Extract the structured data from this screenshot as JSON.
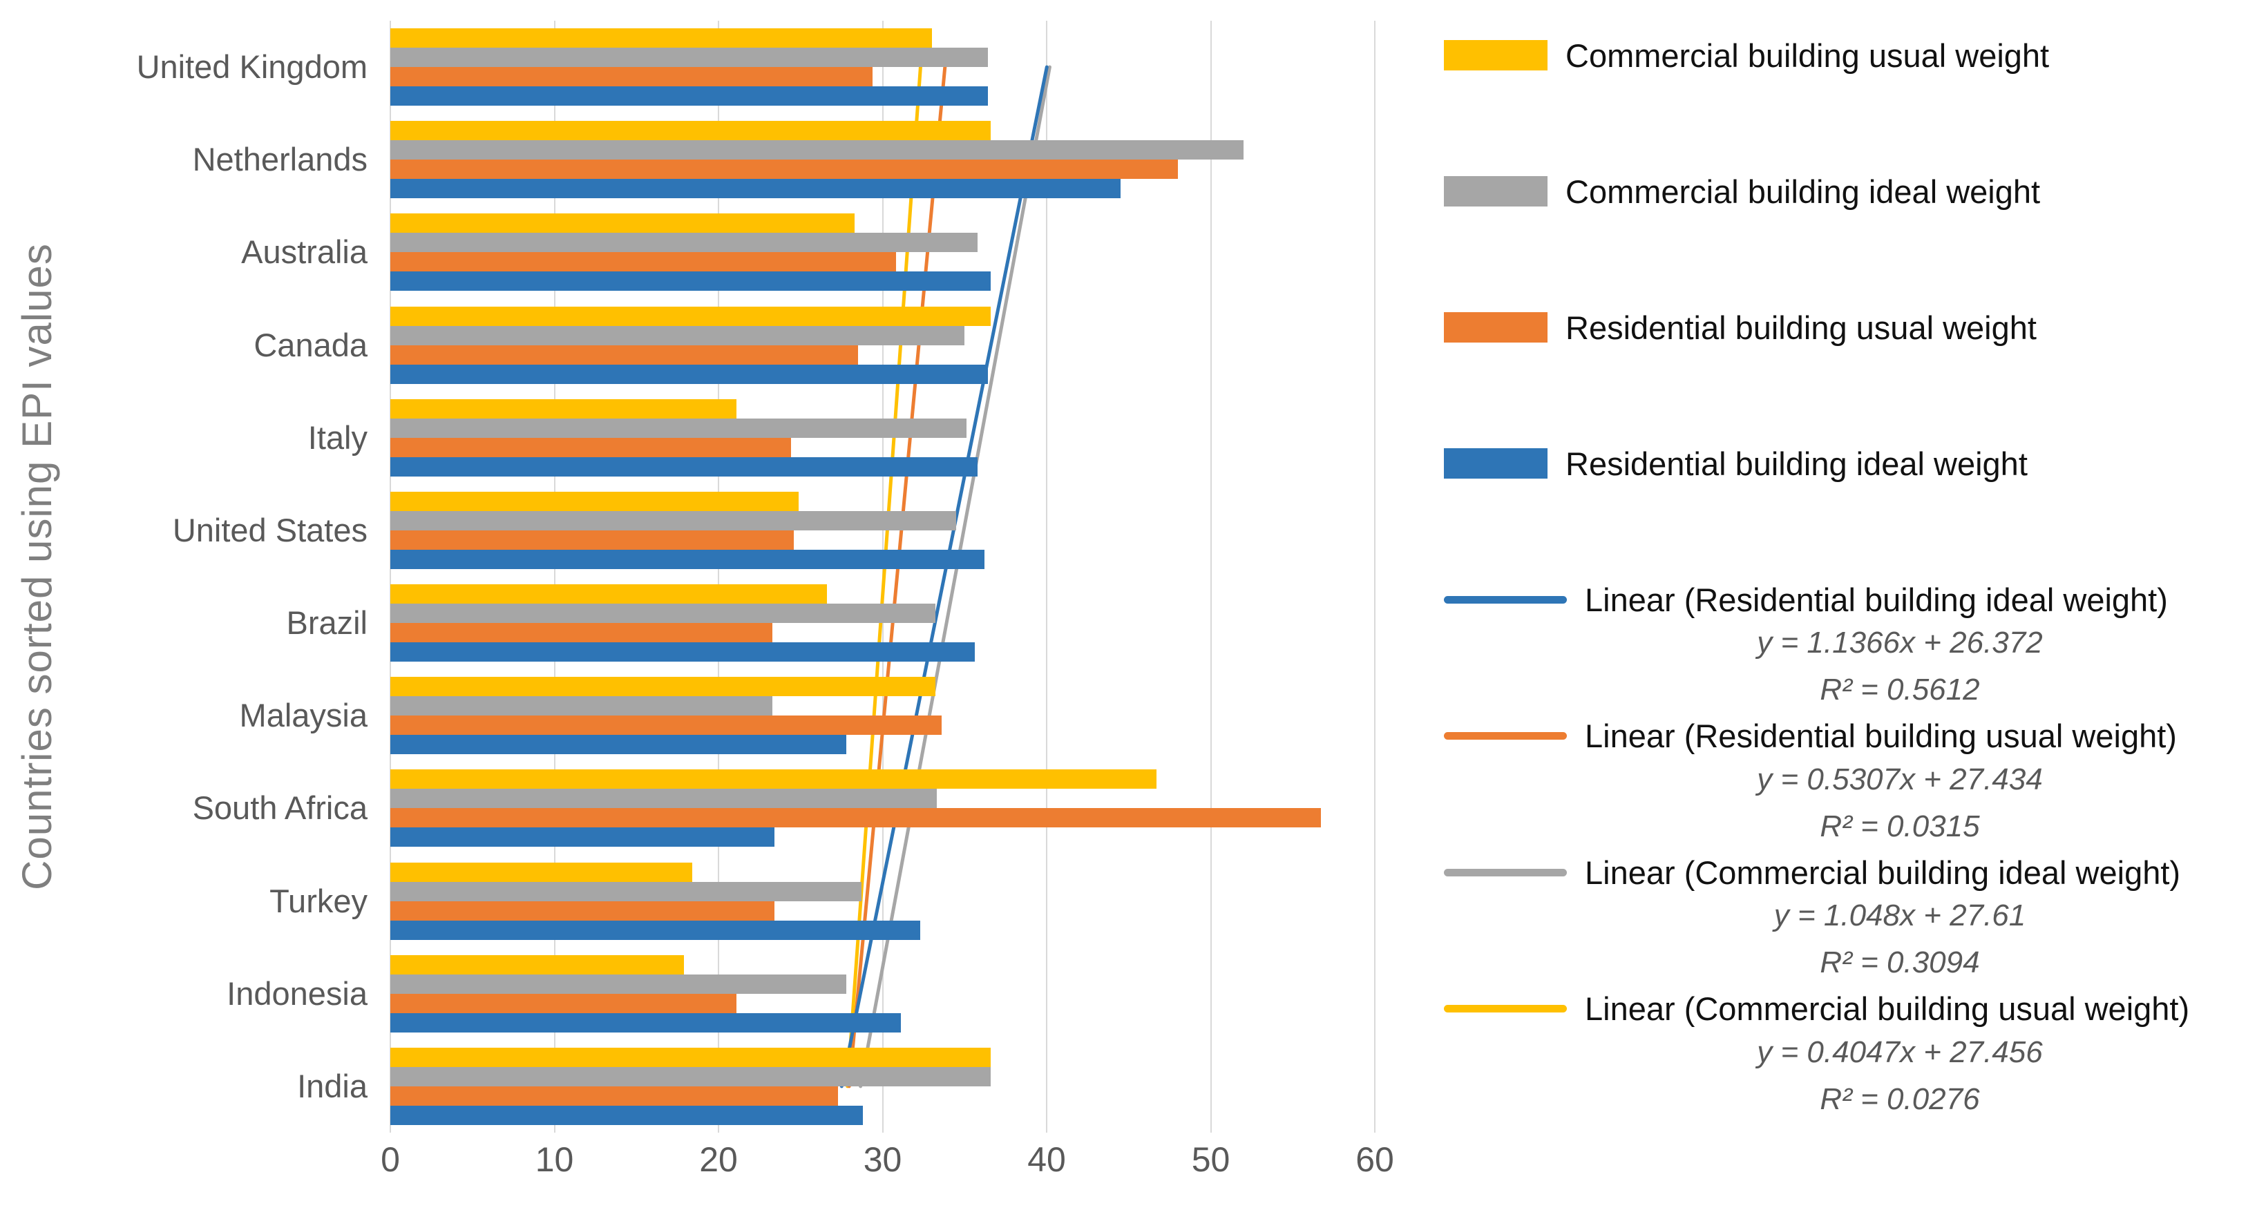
{
  "figure": {
    "y_axis_title": "Countries sorted using EPI values",
    "x_tick_labels": [
      "0",
      "10",
      "20",
      "30",
      "40",
      "50",
      "60"
    ],
    "x_tick_values": [
      0,
      10,
      20,
      30,
      40,
      50,
      60
    ],
    "background_color": "#ffffff",
    "gridline_color": "#d9d9d9",
    "tick_text_color": "#595959",
    "axis_title_color": "#7f7f7f"
  },
  "chart_data": {
    "type": "bar",
    "orientation": "horizontal",
    "title": "",
    "xlabel": "",
    "ylabel": "Countries sorted using EPI values",
    "xlim": [
      0,
      60
    ],
    "grid": true,
    "legend_position": "right",
    "categories": [
      "United Kingdom",
      "Netherlands",
      "Australia",
      "Canada",
      "Italy",
      "United States",
      "Brazil",
      "Malaysia",
      "South Africa",
      "Turkey",
      "Indonesia",
      "India"
    ],
    "series": [
      {
        "name": "Commercial building usual weight",
        "color": "#FFC000",
        "values": [
          33.0,
          36.6,
          28.3,
          36.6,
          21.1,
          24.9,
          26.6,
          33.2,
          46.7,
          18.4,
          17.9,
          36.6
        ]
      },
      {
        "name": "Commercial building ideal weight",
        "color": "#A6A6A6",
        "values": [
          36.4,
          52.0,
          35.8,
          35.0,
          35.1,
          34.5,
          33.2,
          23.3,
          33.3,
          28.7,
          27.8,
          36.6
        ]
      },
      {
        "name": "Residential building usual weight",
        "color": "#ED7D31",
        "values": [
          29.4,
          48.0,
          30.8,
          28.5,
          24.4,
          24.6,
          23.3,
          33.6,
          56.7,
          23.4,
          21.1,
          27.3
        ]
      },
      {
        "name": "Residential building ideal weight",
        "color": "#2E75B6",
        "values": [
          36.4,
          44.5,
          36.6,
          36.4,
          35.8,
          36.2,
          35.6,
          27.8,
          23.4,
          32.3,
          31.1,
          28.8
        ]
      }
    ],
    "trendlines": [
      {
        "name": "Linear (Residential building ideal weight)",
        "equation": "y = 1.1366x + 26.372",
        "r_squared": "R² = 0.5612",
        "color": "#2E75B6",
        "slope": 1.1366,
        "intercept": 26.372
      },
      {
        "name": "Linear (Residential building usual weight)",
        "equation": "y = 0.5307x + 27.434",
        "r_squared": "R² = 0.0315",
        "color": "#ED7D31",
        "slope": 0.5307,
        "intercept": 27.434
      },
      {
        "name": "Linear (Commercial building ideal weight)",
        "equation": "y = 1.048x + 27.61",
        "r_squared": "R² = 0.3094",
        "color": "#A6A6A6",
        "slope": 1.048,
        "intercept": 27.61
      },
      {
        "name": "Linear (Commercial building usual weight)",
        "equation": "y = 0.4047x + 27.456",
        "r_squared": "R² = 0.0276",
        "color": "#FFC000",
        "slope": 0.4047,
        "intercept": 27.456
      }
    ]
  }
}
